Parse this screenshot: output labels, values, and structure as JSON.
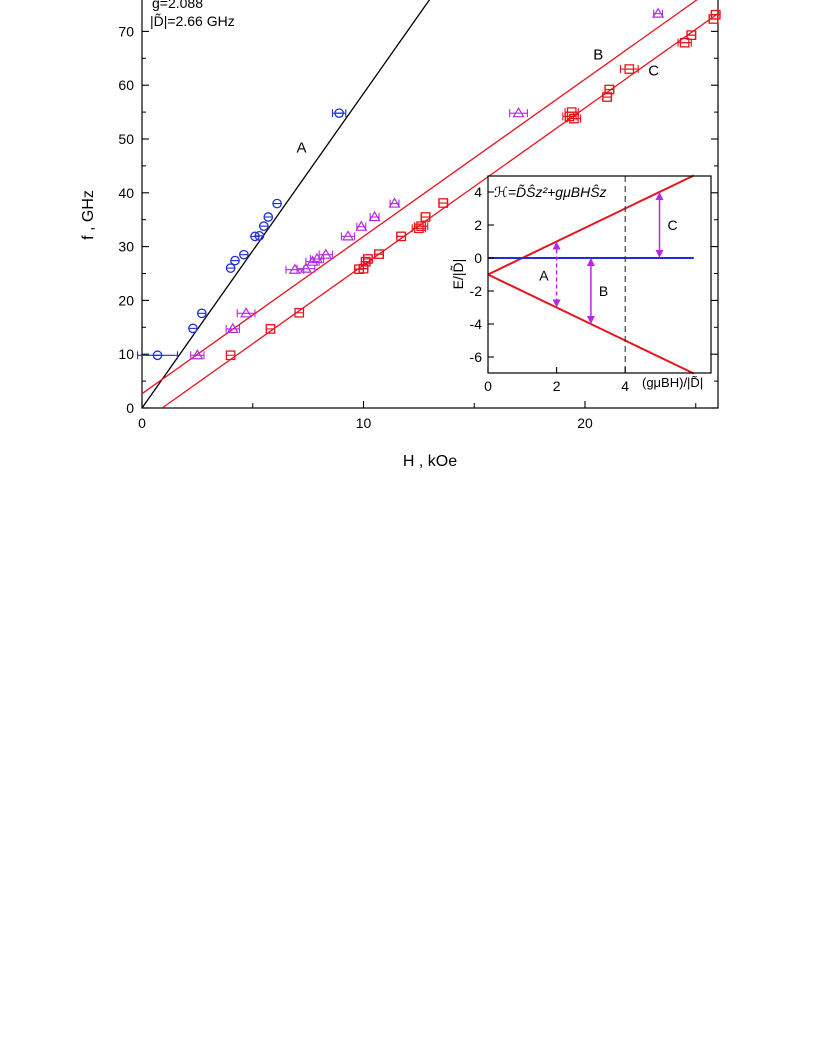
{
  "chart_data": [
    {
      "type": "scatter",
      "title": "",
      "xlabel": "H , kOe",
      "ylabel": "f , GHz",
      "xlim": [
        0,
        26
      ],
      "ylim": [
        0,
        75
      ],
      "xticks": [
        "0",
        "10",
        "20"
      ],
      "yticks": [
        "0",
        "10",
        "20",
        "30",
        "40",
        "50",
        "60",
        "70"
      ],
      "grid": false,
      "annotations": [
        "g=2.088",
        "|D̃|=2.66 GHz"
      ],
      "lines": [
        {
          "name": "A",
          "color": "#000000",
          "x": [
            0,
            13
          ],
          "y": [
            0,
            76
          ]
        },
        {
          "name": "B",
          "color": "#e8131c",
          "x": [
            0,
            26
          ],
          "y": [
            2.66,
            78.64
          ]
        },
        {
          "name": "C",
          "color": "#e8131c",
          "x": [
            0.91,
            26
          ],
          "y": [
            0,
            73.3
          ]
        }
      ],
      "series": [
        {
          "name": "A",
          "marker": "circle",
          "color": "#1f2fd6",
          "points": [
            [
              0.7,
              9.8,
              0.9
            ],
            [
              2.3,
              14.8,
              0
            ],
            [
              2.7,
              17.6,
              0
            ],
            [
              4.0,
              26.0,
              0
            ],
            [
              4.2,
              27.4,
              0
            ],
            [
              4.6,
              28.5,
              0
            ],
            [
              5.1,
              31.9,
              0
            ],
            [
              5.3,
              32.0,
              0
            ],
            [
              5.5,
              33.8,
              0
            ],
            [
              5.7,
              35.5,
              0
            ],
            [
              6.1,
              38.0,
              0
            ],
            [
              8.9,
              54.8,
              0.3
            ]
          ]
        },
        {
          "name": "B",
          "marker": "triangle",
          "color": "#b428e6",
          "points": [
            [
              2.5,
              9.8,
              0.3
            ],
            [
              4.1,
              14.7,
              0.3
            ],
            [
              4.7,
              17.6,
              0.4
            ],
            [
              6.9,
              25.7,
              0.4
            ],
            [
              7.4,
              25.9,
              0.4
            ],
            [
              7.7,
              27.2,
              0.3
            ],
            [
              7.9,
              27.7,
              0.3
            ],
            [
              8.3,
              28.5,
              0.3
            ],
            [
              9.3,
              31.9,
              0.3
            ],
            [
              9.9,
              33.7,
              0.2
            ],
            [
              10.5,
              35.5,
              0.2
            ],
            [
              11.4,
              38.0,
              0.2
            ],
            [
              17.0,
              54.8,
              0.4
            ],
            [
              23.3,
              73.3,
              0.2
            ]
          ]
        },
        {
          "name": "C",
          "marker": "square",
          "color": "#e8131c",
          "points": [
            [
              4.0,
              9.8,
              0
            ],
            [
              5.8,
              14.7,
              0
            ],
            [
              7.1,
              17.7,
              0
            ],
            [
              9.8,
              25.8,
              0.2
            ],
            [
              10.0,
              25.9,
              0.2
            ],
            [
              10.1,
              27.2,
              0.2
            ],
            [
              10.2,
              27.7,
              0.2
            ],
            [
              10.7,
              28.6,
              0.2
            ],
            [
              11.7,
              31.9,
              0.2
            ],
            [
              12.5,
              33.4,
              0.3
            ],
            [
              12.6,
              33.8,
              0.3
            ],
            [
              12.8,
              35.5,
              0.2
            ],
            [
              13.6,
              38.1,
              0.2
            ],
            [
              19.3,
              54.2,
              0.3
            ],
            [
              19.4,
              55.0,
              0.3
            ],
            [
              19.5,
              53.8,
              0.3
            ],
            [
              21.0,
              57.8,
              0.2
            ],
            [
              21.1,
              59.2,
              0.2
            ],
            [
              22.0,
              63.0,
              0.4
            ],
            [
              24.5,
              67.9,
              0.3
            ],
            [
              24.8,
              69.3,
              0.2
            ],
            [
              25.8,
              72.3,
              0.2
            ],
            [
              25.9,
              73.1,
              0.2
            ]
          ]
        }
      ],
      "curve_labels": [
        {
          "text": "A",
          "x": 7.2,
          "y": 47.5
        },
        {
          "text": "B",
          "x": 20.6,
          "y": 64.8
        },
        {
          "text": "C",
          "x": 23.1,
          "y": 61.8
        }
      ]
    },
    {
      "type": "line",
      "title": "",
      "formula": "ℋ=D̃Ŝz²+gμBHŜz",
      "xlabel": "(gμBH)/|D̃|",
      "ylabel": "E/|D̃|",
      "xlim": [
        0,
        6
      ],
      "ylim": [
        -7,
        5
      ],
      "xticks": [
        "0",
        "2",
        "4"
      ],
      "yticks": [
        "4",
        "2",
        "0",
        "-2",
        "-4",
        "-6"
      ],
      "grid": false,
      "series": [
        {
          "name": "",
          "color": "#e8131c",
          "x": [
            0,
            6
          ],
          "y": [
            -1,
            5
          ]
        },
        {
          "name": "",
          "color": "#1f2fd6",
          "x": [
            0,
            6
          ],
          "y": [
            0,
            0
          ]
        },
        {
          "name": "",
          "color": "#e8131c",
          "x": [
            0,
            6
          ],
          "y": [
            -1,
            -7
          ]
        }
      ],
      "markers": {
        "dashed_x": 4
      },
      "transitions": [
        {
          "name": "A",
          "x": 2,
          "y_from": -3,
          "y_to": 1,
          "style": "dashed"
        },
        {
          "name": "B",
          "x": 3,
          "y_from": -4,
          "y_to": 0,
          "style": "solid"
        },
        {
          "name": "C",
          "x": 5,
          "y_from": 0,
          "y_to": 4,
          "style": "solid"
        }
      ]
    }
  ]
}
